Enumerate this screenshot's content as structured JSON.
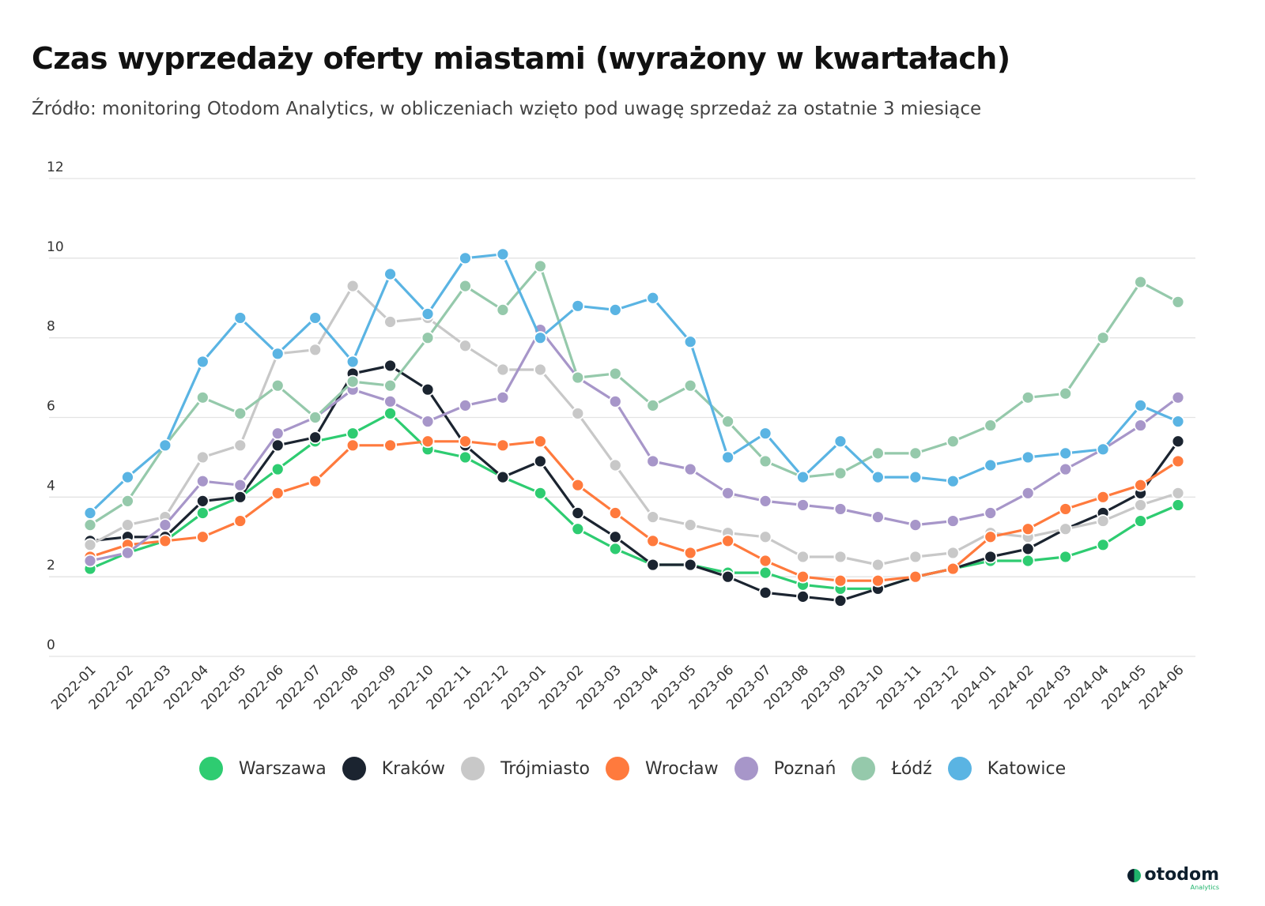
{
  "header": {
    "title": "Czas wyprzedaży oferty miastami (wyrażony w kwartałach)",
    "subtitle": "Źródło: monitoring Otodom Analytics, w obliczeniach wzięto pod uwagę sprzedaż za ostatnie 3 miesiące"
  },
  "brand": {
    "name": "otodom",
    "sub": "Analytics"
  },
  "chart_data": {
    "type": "line",
    "title": "Czas wyprzedaży oferty miastami (wyrażony w kwartałach)",
    "subtitle": "Źródło: monitoring Otodom Analytics, w obliczeniach wzięto pod uwagę sprzedaż za ostatnie 3 miesiące",
    "xlabel": "",
    "ylabel": "",
    "ylim": [
      0,
      12
    ],
    "yticks": [
      0,
      2,
      4,
      6,
      8,
      10,
      12
    ],
    "grid": true,
    "legend_position": "bottom",
    "categories": [
      "2022-01",
      "2022-02",
      "2022-03",
      "2022-04",
      "2022-05",
      "2022-06",
      "2022-07",
      "2022-08",
      "2022-09",
      "2022-10",
      "2022-11",
      "2022-12",
      "2023-01",
      "2023-02",
      "2023-03",
      "2023-04",
      "2023-05",
      "2023-06",
      "2023-07",
      "2023-08",
      "2023-09",
      "2023-10",
      "2023-11",
      "2023-12",
      "2024-01",
      "2024-02",
      "2024-03",
      "2024-04",
      "2024-05",
      "2024-06"
    ],
    "series": [
      {
        "name": "Warszawa",
        "color": "#2ecc71",
        "values": [
          2.2,
          2.6,
          2.9,
          3.6,
          4.0,
          4.7,
          5.4,
          5.6,
          6.1,
          5.2,
          5.0,
          4.5,
          4.1,
          3.2,
          2.7,
          2.3,
          2.3,
          2.1,
          2.1,
          1.8,
          1.7,
          1.7,
          2.0,
          2.2,
          2.4,
          2.4,
          2.5,
          2.8,
          3.4,
          3.8
        ]
      },
      {
        "name": "Kraków",
        "color": "#1b2430",
        "values": [
          2.9,
          3.0,
          3.0,
          3.9,
          4.0,
          5.3,
          5.5,
          7.1,
          7.3,
          6.7,
          5.3,
          4.5,
          4.9,
          3.6,
          3.0,
          2.3,
          2.3,
          2.0,
          1.6,
          1.5,
          1.4,
          1.7,
          2.0,
          2.2,
          2.5,
          2.7,
          3.2,
          3.6,
          4.1,
          5.4
        ]
      },
      {
        "name": "Trójmiasto",
        "color": "#c8c8c8",
        "values": [
          2.8,
          3.3,
          3.5,
          5.0,
          5.3,
          7.6,
          7.7,
          9.3,
          8.4,
          8.5,
          7.8,
          7.2,
          7.2,
          6.1,
          4.8,
          3.5,
          3.3,
          3.1,
          3.0,
          2.5,
          2.5,
          2.3,
          2.5,
          2.6,
          3.1,
          3.0,
          3.2,
          3.4,
          3.8,
          4.1
        ]
      },
      {
        "name": "Wrocław",
        "color": "#ff7a3d",
        "values": [
          2.5,
          2.8,
          2.9,
          3.0,
          3.4,
          4.1,
          4.4,
          5.3,
          5.3,
          5.4,
          5.4,
          5.3,
          5.4,
          4.3,
          3.6,
          2.9,
          2.6,
          2.9,
          2.4,
          2.0,
          1.9,
          1.9,
          2.0,
          2.2,
          3.0,
          3.2,
          3.7,
          4.0,
          4.3,
          4.9
        ]
      },
      {
        "name": "Poznań",
        "color": "#a796c9",
        "values": [
          2.4,
          2.6,
          3.3,
          4.4,
          4.3,
          5.6,
          6.0,
          6.7,
          6.4,
          5.9,
          6.3,
          6.5,
          8.2,
          7.0,
          6.4,
          4.9,
          4.7,
          4.1,
          3.9,
          3.8,
          3.7,
          3.5,
          3.3,
          3.4,
          3.6,
          4.1,
          4.7,
          5.2,
          5.8,
          6.5
        ]
      },
      {
        "name": "Łódź",
        "color": "#95c9ab",
        "values": [
          3.3,
          3.9,
          5.3,
          6.5,
          6.1,
          6.8,
          6.0,
          6.9,
          6.8,
          8.0,
          9.3,
          8.7,
          9.8,
          7.0,
          7.1,
          6.3,
          6.8,
          5.9,
          4.9,
          4.5,
          4.6,
          5.1,
          5.1,
          5.4,
          5.8,
          6.5,
          6.6,
          8.0,
          9.4,
          8.9
        ]
      },
      {
        "name": "Katowice",
        "color": "#5ab4e3",
        "values": [
          3.6,
          4.5,
          5.3,
          7.4,
          8.5,
          7.6,
          8.5,
          7.4,
          9.6,
          8.6,
          10.0,
          10.1,
          8.0,
          8.8,
          8.7,
          9.0,
          7.9,
          5.0,
          5.6,
          4.5,
          5.4,
          4.5,
          4.5,
          4.4,
          4.8,
          5.0,
          5.1,
          5.2,
          6.3,
          5.9
        ]
      }
    ]
  }
}
